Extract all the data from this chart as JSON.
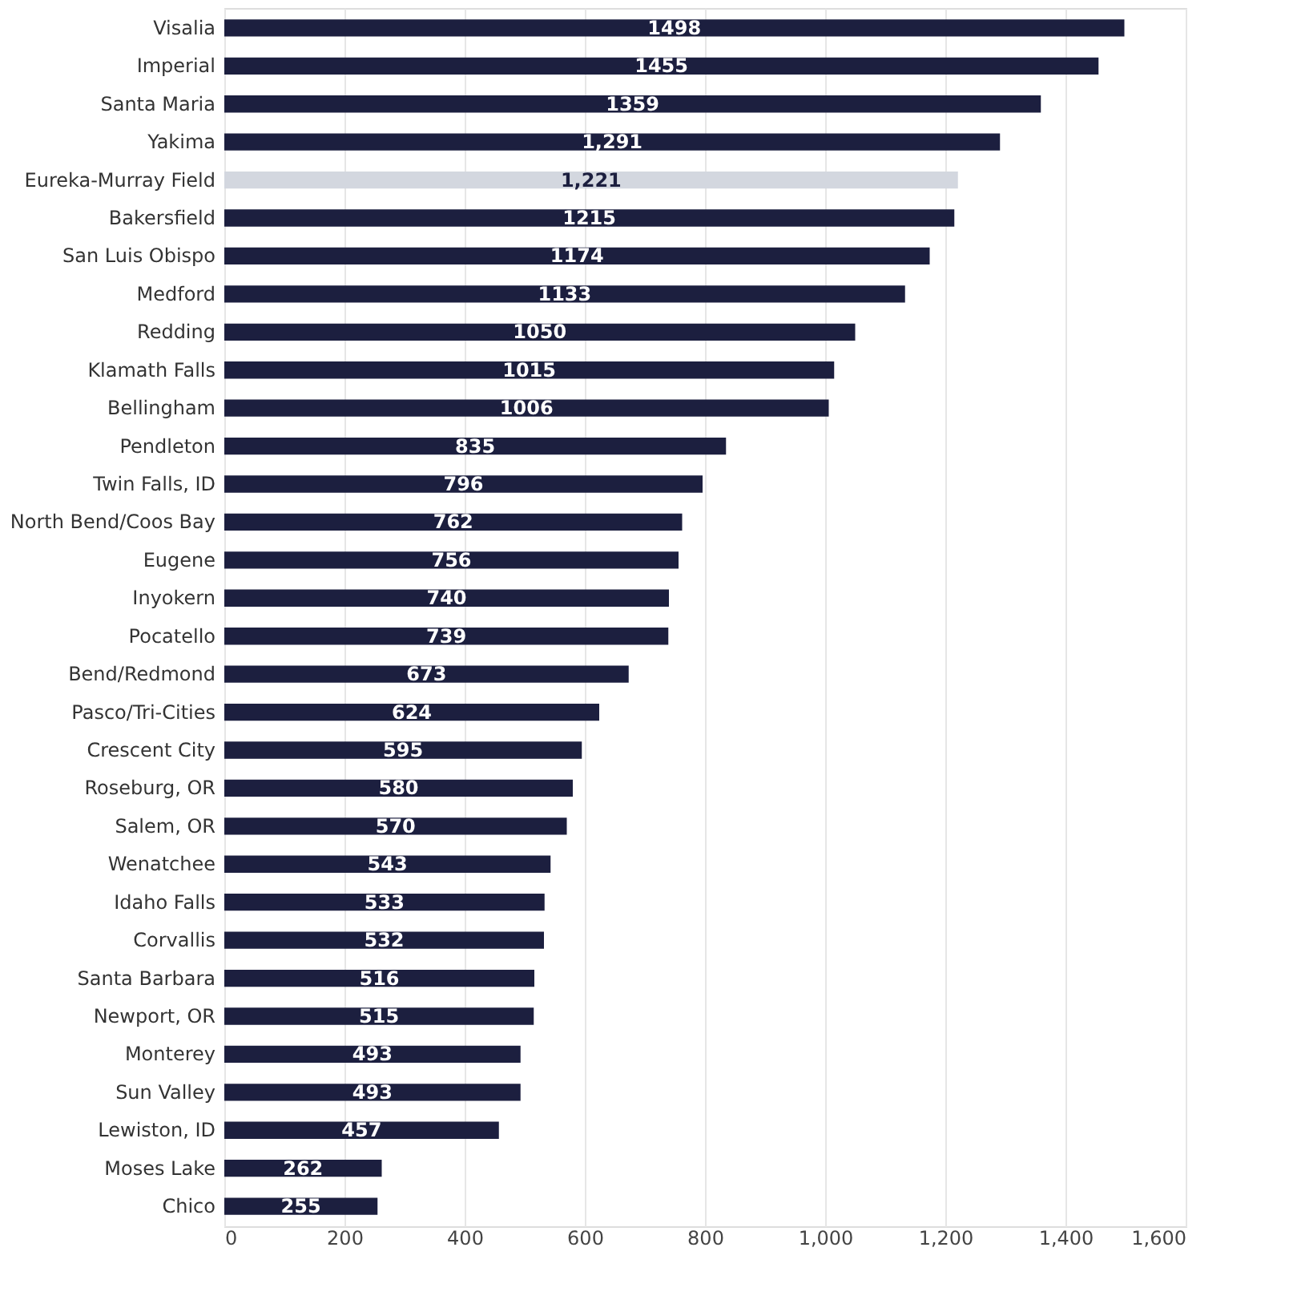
{
  "chart_data": {
    "type": "bar",
    "orientation": "horizontal",
    "categories": [
      "Visalia",
      "Imperial",
      "Santa Maria",
      "Yakima",
      "Eureka-Murray Field",
      "Bakersfield",
      "San Luis Obispo",
      "Medford",
      "Redding",
      "Klamath Falls",
      "Bellingham",
      "Pendleton",
      "Twin Falls, ID",
      "North Bend/Coos Bay",
      "Eugene",
      "Inyokern",
      "Pocatello",
      "Bend/Redmond",
      "Pasco/Tri-Cities",
      "Crescent City",
      "Roseburg, OR",
      "Salem, OR",
      "Wenatchee",
      "Idaho Falls",
      "Corvallis",
      "Santa Barbara",
      "Newport, OR",
      "Monterey",
      "Sun Valley",
      "Lewiston, ID",
      "Moses Lake",
      "Chico"
    ],
    "values": [
      1498,
      1455,
      1359,
      1291,
      1221,
      1215,
      1174,
      1133,
      1050,
      1015,
      1006,
      835,
      796,
      762,
      756,
      740,
      739,
      673,
      624,
      595,
      580,
      570,
      543,
      533,
      532,
      516,
      515,
      493,
      493,
      457,
      262,
      255
    ],
    "value_labels": [
      "1498",
      "1455",
      "1359",
      "1,291",
      "1,221",
      "1215",
      "1174",
      "1133",
      "1050",
      "1015",
      "1006",
      "835",
      "796",
      "762",
      "756",
      "740",
      "739",
      "673",
      "624",
      "595",
      "580",
      "570",
      "543",
      "533",
      "532",
      "516",
      "515",
      "493",
      "493",
      "457",
      "262",
      "255"
    ],
    "colors": [
      "#1c1f3f",
      "#1c1f3f",
      "#1c1f3f",
      "#1c1f3f",
      "#d3d7df",
      "#1c1f3f",
      "#1c1f3f",
      "#1c1f3f",
      "#1c1f3f",
      "#1c1f3f",
      "#1c1f3f",
      "#1c1f3f",
      "#1c1f3f",
      "#1c1f3f",
      "#1c1f3f",
      "#1c1f3f",
      "#1c1f3f",
      "#1c1f3f",
      "#1c1f3f",
      "#1c1f3f",
      "#1c1f3f",
      "#1c1f3f",
      "#1c1f3f",
      "#1c1f3f",
      "#1c1f3f",
      "#1c1f3f",
      "#1c1f3f",
      "#1c1f3f",
      "#1c1f3f",
      "#1c1f3f",
      "#1c1f3f",
      "#1c1f3f"
    ],
    "xlim": [
      0,
      1600
    ],
    "xticks": [
      0,
      200,
      400,
      600,
      800,
      {
        "value": 1000,
        "label": "1,000"
      },
      {
        "value": 1200,
        "label": "1,200"
      },
      {
        "value": 1400,
        "label": "1,400"
      },
      {
        "value": 1600,
        "label": "1,600"
      }
    ],
    "grid": "x"
  }
}
